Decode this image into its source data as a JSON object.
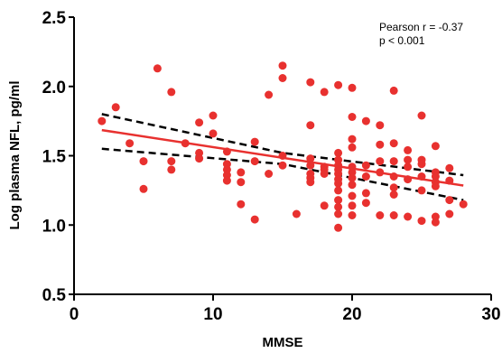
{
  "chart_data": {
    "type": "scatter",
    "xlabel": "MMSE",
    "ylabel": "Log plasma NFL, pg/ml",
    "xlim": [
      0,
      30
    ],
    "ylim": [
      0.5,
      2.5
    ],
    "xticks": [
      "0",
      "10",
      "20",
      "30"
    ],
    "yticks": [
      "0.5",
      "1.0",
      "1.5",
      "2.0",
      "2.5"
    ],
    "grid": false,
    "annotations": {
      "line1": "Pearson r = -0.37",
      "line2": "p < 0.001"
    },
    "point_color": "#e8312f",
    "fit_color": "#e8312f",
    "ci_color": "#000000",
    "points": [
      [
        2,
        1.75
      ],
      [
        3,
        1.85
      ],
      [
        4,
        1.59
      ],
      [
        5,
        1.46
      ],
      [
        5,
        1.26
      ],
      [
        6,
        2.13
      ],
      [
        7,
        1.96
      ],
      [
        7,
        1.46
      ],
      [
        7,
        1.4
      ],
      [
        8,
        1.59
      ],
      [
        9,
        1.74
      ],
      [
        9,
        1.52
      ],
      [
        9,
        1.48
      ],
      [
        10,
        1.79
      ],
      [
        10,
        1.66
      ],
      [
        11,
        1.53
      ],
      [
        11,
        1.44
      ],
      [
        11,
        1.4
      ],
      [
        11,
        1.36
      ],
      [
        11,
        1.32
      ],
      [
        12,
        1.38
      ],
      [
        12,
        1.31
      ],
      [
        12,
        1.15
      ],
      [
        13,
        1.6
      ],
      [
        13,
        1.46
      ],
      [
        13,
        1.04
      ],
      [
        14,
        1.94
      ],
      [
        14,
        1.37
      ],
      [
        15,
        2.15
      ],
      [
        15,
        2.06
      ],
      [
        15,
        1.5
      ],
      [
        15,
        1.43
      ],
      [
        16,
        1.08
      ],
      [
        17,
        2.03
      ],
      [
        17,
        1.72
      ],
      [
        17,
        1.48
      ],
      [
        17,
        1.43
      ],
      [
        17,
        1.37
      ],
      [
        17,
        1.34
      ],
      [
        17,
        1.31
      ],
      [
        18,
        1.96
      ],
      [
        18,
        1.42
      ],
      [
        18,
        1.4
      ],
      [
        18,
        1.37
      ],
      [
        18,
        1.14
      ],
      [
        19,
        2.01
      ],
      [
        19,
        1.52
      ],
      [
        19,
        1.47
      ],
      [
        19,
        1.43
      ],
      [
        19,
        1.4
      ],
      [
        19,
        1.37
      ],
      [
        19,
        1.33
      ],
      [
        19,
        1.3
      ],
      [
        19,
        1.25
      ],
      [
        19,
        1.18
      ],
      [
        19,
        1.13
      ],
      [
        19,
        1.08
      ],
      [
        19,
        0.98
      ],
      [
        20,
        1.99
      ],
      [
        20,
        1.78
      ],
      [
        20,
        1.62
      ],
      [
        20,
        1.56
      ],
      [
        20,
        1.42
      ],
      [
        20,
        1.38
      ],
      [
        20,
        1.34
      ],
      [
        20,
        1.29
      ],
      [
        20,
        1.21
      ],
      [
        20,
        1.14
      ],
      [
        20,
        1.07
      ],
      [
        21,
        1.75
      ],
      [
        21,
        1.43
      ],
      [
        21,
        1.35
      ],
      [
        21,
        1.23
      ],
      [
        21,
        1.16
      ],
      [
        22,
        1.72
      ],
      [
        22,
        1.58
      ],
      [
        22,
        1.46
      ],
      [
        22,
        1.38
      ],
      [
        22,
        1.07
      ],
      [
        23,
        1.97
      ],
      [
        23,
        1.59
      ],
      [
        23,
        1.46
      ],
      [
        23,
        1.35
      ],
      [
        23,
        1.27
      ],
      [
        23,
        1.22
      ],
      [
        23,
        1.07
      ],
      [
        24,
        1.54
      ],
      [
        24,
        1.47
      ],
      [
        24,
        1.42
      ],
      [
        24,
        1.33
      ],
      [
        24,
        1.06
      ],
      [
        25,
        1.79
      ],
      [
        25,
        1.47
      ],
      [
        25,
        1.44
      ],
      [
        25,
        1.35
      ],
      [
        25,
        1.25
      ],
      [
        25,
        1.03
      ],
      [
        26,
        1.57
      ],
      [
        26,
        1.38
      ],
      [
        26,
        1.35
      ],
      [
        26,
        1.31
      ],
      [
        26,
        1.28
      ],
      [
        26,
        1.06
      ],
      [
        26,
        1.02
      ],
      [
        27,
        1.41
      ],
      [
        27,
        1.32
      ],
      [
        27,
        1.18
      ],
      [
        27,
        1.08
      ],
      [
        28,
        1.15
      ]
    ],
    "fit_line": {
      "x": [
        2,
        28
      ],
      "y": [
        1.685,
        1.285
      ]
    },
    "ci_upper": {
      "x": [
        2,
        15,
        28
      ],
      "y": [
        1.8,
        1.52,
        1.36
      ]
    },
    "ci_lower": {
      "x": [
        2,
        15,
        28
      ],
      "y": [
        1.55,
        1.44,
        1.18
      ]
    }
  }
}
